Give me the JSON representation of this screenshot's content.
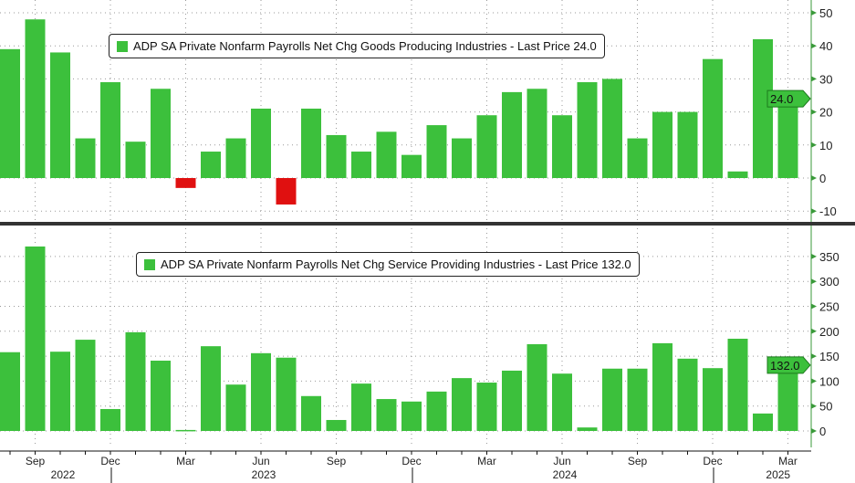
{
  "chart_data": [
    {
      "type": "bar",
      "title": "ADP SA Private Nonfarm Payrolls Net Chg Goods Producing Industries - Last Price 24.0",
      "legend": "ADP SA Private Nonfarm Payrolls Net Chg Goods Producing Industries - Last Price 24.0",
      "last_price": "24.0",
      "ylim": [
        -13,
        52
      ],
      "yticks": [
        -10,
        0,
        10,
        20,
        30,
        40,
        50
      ],
      "x": [
        "2022-08",
        "2022-09",
        "2022-10",
        "2022-11",
        "2022-12",
        "2023-01",
        "2023-02",
        "2023-03",
        "2023-04",
        "2023-05",
        "2023-06",
        "2023-07",
        "2023-08",
        "2023-09",
        "2023-10",
        "2023-11",
        "2023-12",
        "2024-01",
        "2024-02",
        "2024-03",
        "2024-04",
        "2024-05",
        "2024-06",
        "2024-07",
        "2024-08",
        "2024-09",
        "2024-10",
        "2024-11",
        "2024-12",
        "2025-01",
        "2025-02",
        "2025-03"
      ],
      "values": [
        39,
        48,
        38,
        12,
        29,
        11,
        27,
        -3,
        8,
        12,
        21,
        -8,
        21,
        13,
        8,
        14,
        7,
        16,
        12,
        19,
        26,
        27,
        19,
        29,
        30,
        12,
        20,
        20,
        36,
        2,
        42,
        24
      ],
      "legend_placement": "top-left"
    },
    {
      "type": "bar",
      "title": "ADP SA Private Nonfarm Payrolls Net Chg Service Providing Industries - Last Price 132.0",
      "legend": "ADP SA Private Nonfarm Payrolls Net Chg Service Providing Industries - Last Price 132.0",
      "last_price": "132.0",
      "ylim": [
        -30,
        400
      ],
      "yticks": [
        0,
        50,
        100,
        150,
        200,
        250,
        300,
        350
      ],
      "values": [
        158,
        370,
        159,
        183,
        44,
        198,
        141,
        2,
        170,
        93,
        156,
        147,
        70,
        22,
        95,
        64,
        59,
        79,
        106,
        97,
        121,
        174,
        115,
        7,
        125,
        125,
        176,
        145,
        126,
        185,
        35,
        132
      ],
      "legend_placement": "top-left"
    }
  ],
  "x_axis": {
    "month_ticks": [
      {
        "label": "Sep",
        "index": 1
      },
      {
        "label": "Dec",
        "index": 4
      },
      {
        "label": "Mar",
        "index": 7
      },
      {
        "label": "Jun",
        "index": 10
      },
      {
        "label": "Sep",
        "index": 13
      },
      {
        "label": "Dec",
        "index": 16
      },
      {
        "label": "Mar",
        "index": 19
      },
      {
        "label": "Jun",
        "index": 22
      },
      {
        "label": "Sep",
        "index": 25
      },
      {
        "label": "Dec",
        "index": 28
      },
      {
        "label": "Mar",
        "index": 31
      }
    ],
    "years": [
      {
        "label": "2022",
        "index": 2
      },
      {
        "label": "2023",
        "index": 10
      },
      {
        "label": "2024",
        "index": 22
      },
      {
        "label": "2025",
        "index": 30.5
      }
    ]
  },
  "colors": {
    "positive": "#3cc03c",
    "negative": "#e01010",
    "axis": "#3a9a3a"
  }
}
